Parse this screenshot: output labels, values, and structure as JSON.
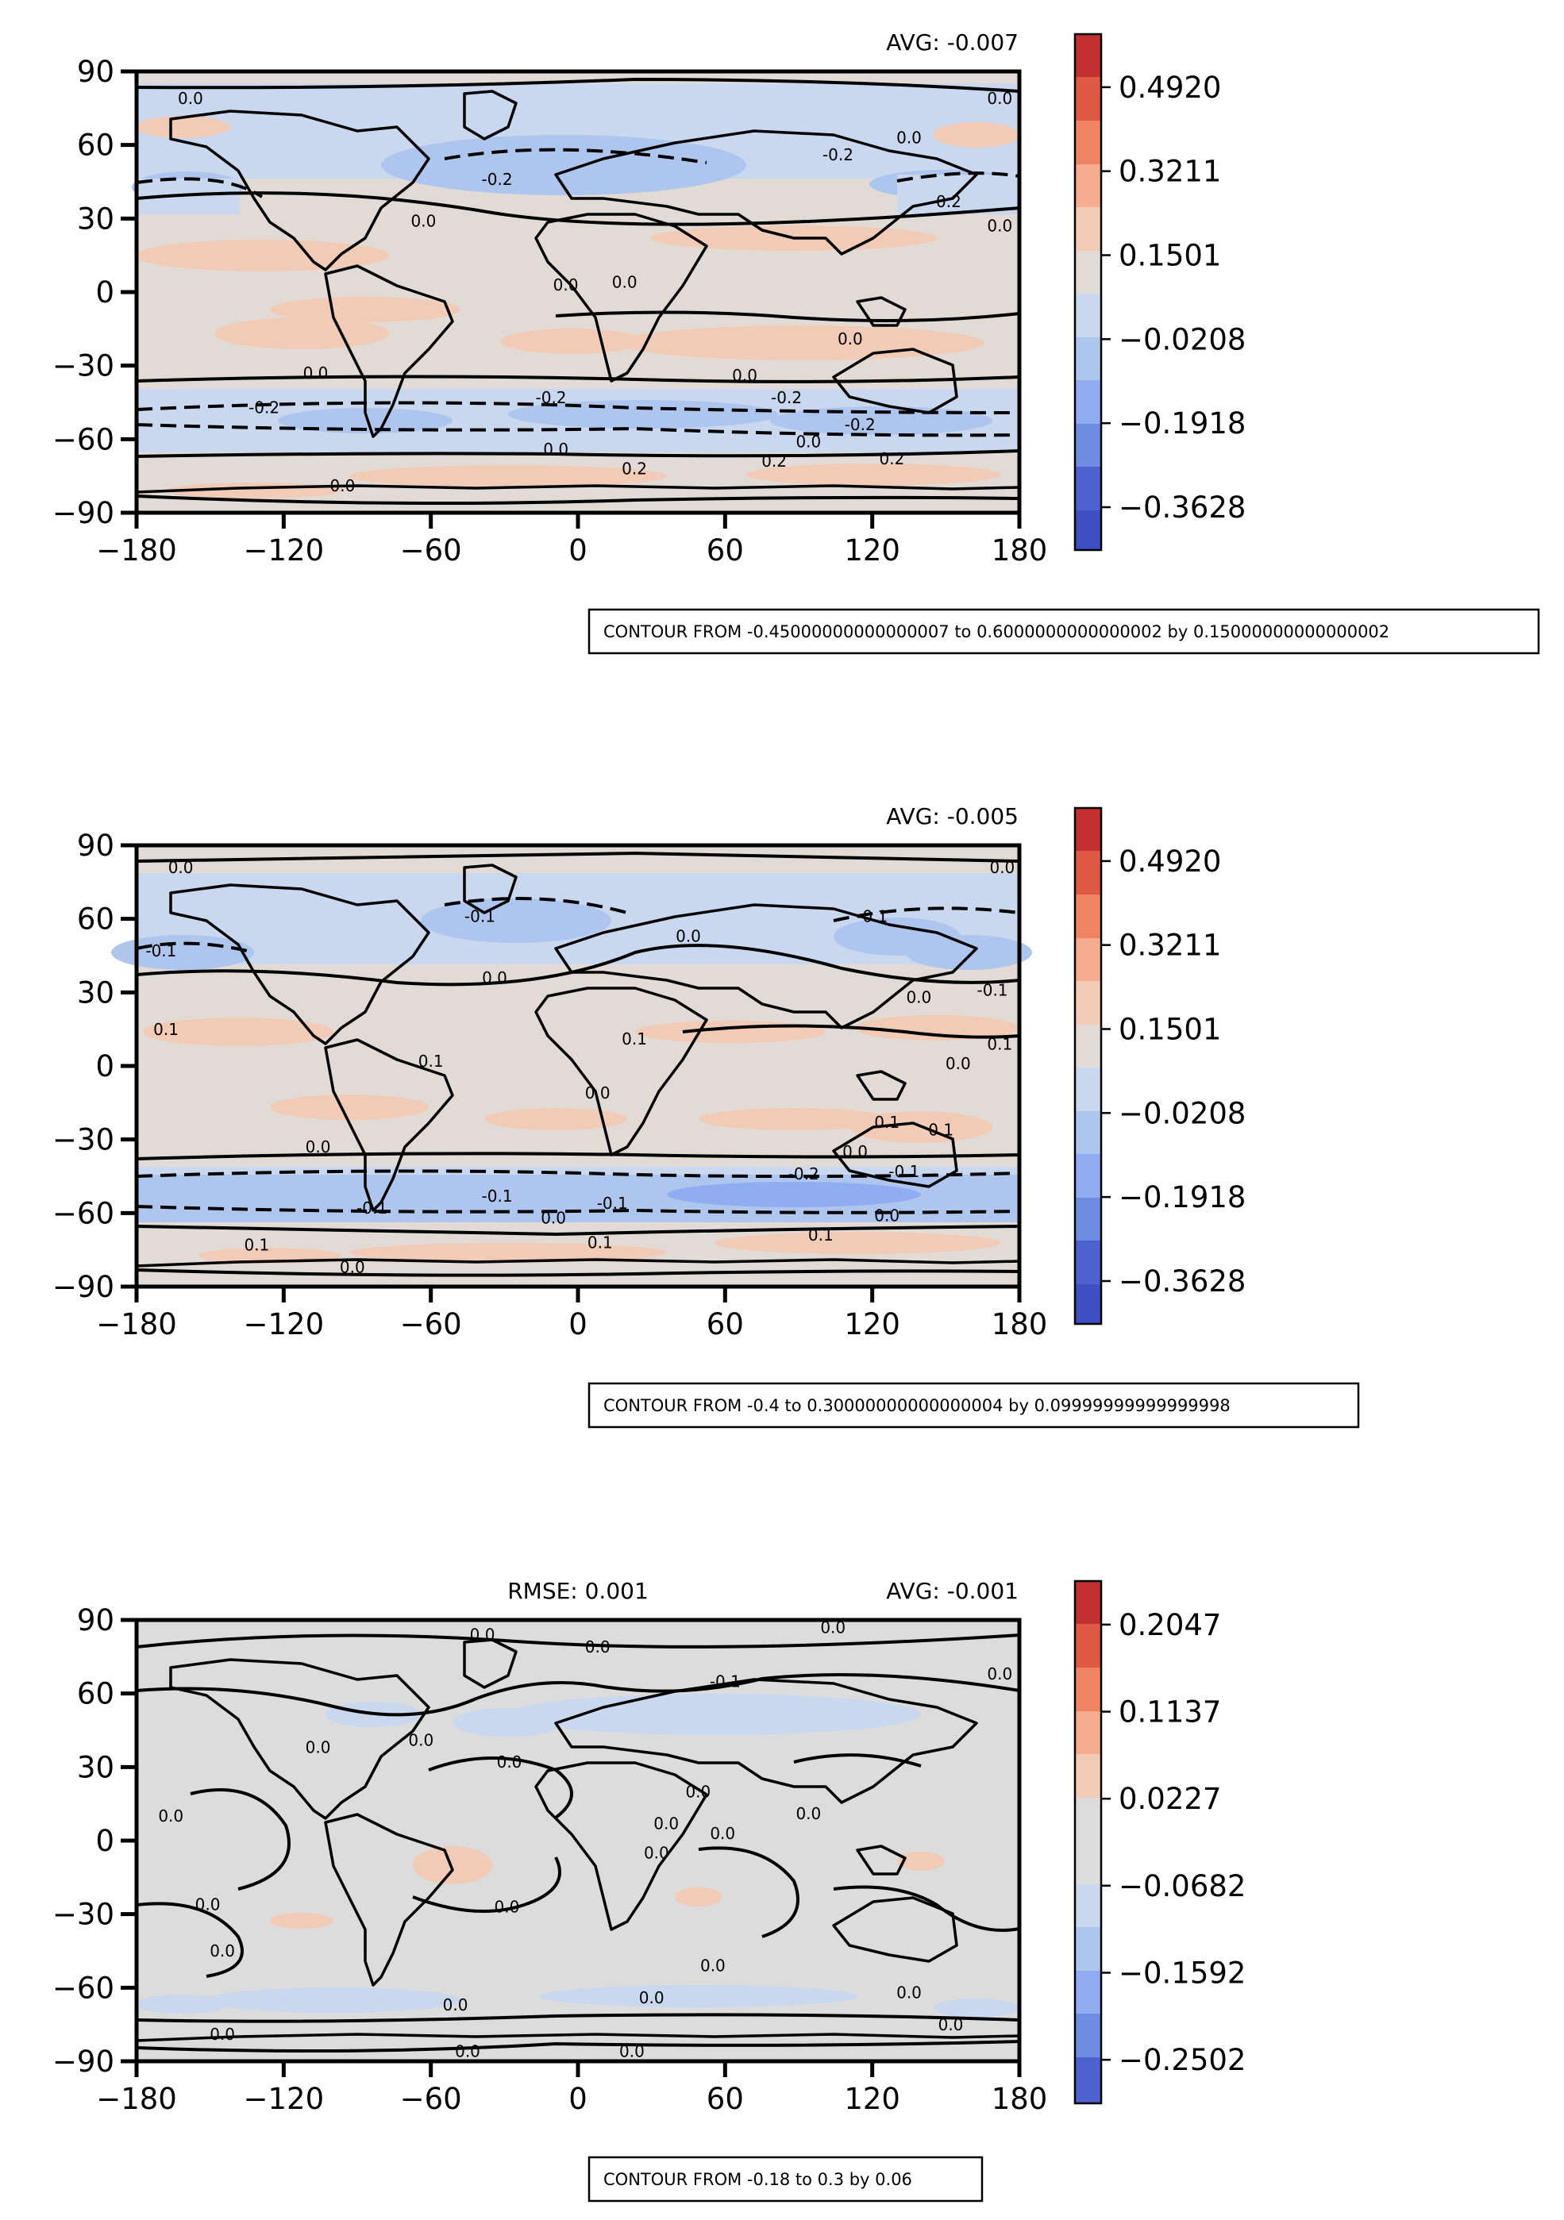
{
  "chart_data": [
    {
      "type": "heatmap",
      "title_left": "",
      "title_right": "AVG: -0.007",
      "xlim": [
        -180,
        180
      ],
      "ylim": [
        -90,
        90
      ],
      "xticks": [
        "−180",
        "−120",
        "−60",
        "0",
        "60",
        "120",
        "180"
      ],
      "yticks": [
        "90",
        "60",
        "30",
        "0",
        "−30",
        "−60",
        "−90"
      ],
      "colorbar": {
        "vmin": -0.45,
        "vmax": 0.6,
        "labels": [
          "0.4920",
          "0.3211",
          "0.1501",
          "−0.0208",
          "−0.1918",
          "−0.3628"
        ],
        "label_values": [
          0.492,
          0.3211,
          0.1501,
          -0.0208,
          -0.1918,
          -0.3628
        ]
      },
      "contour_levels": [
        -0.45,
        -0.3,
        -0.15,
        0.0,
        0.15,
        0.3,
        0.45,
        0.6
      ],
      "contour_note": "CONTOUR FROM -0.45000000000000007 to 0.6000000000000002 by 0.15000000000000002",
      "contour_labels": [
        {
          "text": "0.0",
          "lon": -158,
          "lat": 78
        },
        {
          "text": "-0.2",
          "lon": -33,
          "lat": 45
        },
        {
          "text": "0.0",
          "lon": -63,
          "lat": 28
        },
        {
          "text": "-0.2",
          "lon": 106,
          "lat": 55
        },
        {
          "text": "-0.2",
          "lon": 150,
          "lat": 36
        },
        {
          "text": "0.0",
          "lon": 172,
          "lat": 26
        },
        {
          "text": "0.0",
          "lon": 172,
          "lat": 78
        },
        {
          "text": "0.0",
          "lon": 135,
          "lat": 62
        },
        {
          "text": "0.0",
          "lon": -5,
          "lat": 2
        },
        {
          "text": "0.0",
          "lon": 19,
          "lat": 3
        },
        {
          "text": "0.0",
          "lon": 111,
          "lat": -20
        },
        {
          "text": "0.0",
          "lon": -107,
          "lat": -34
        },
        {
          "text": "0.0",
          "lon": 68,
          "lat": -35
        },
        {
          "text": "-0.2",
          "lon": -128,
          "lat": -48
        },
        {
          "text": "-0.2",
          "lon": -11,
          "lat": -44
        },
        {
          "text": "-0.2",
          "lon": 85,
          "lat": -44
        },
        {
          "text": "-0.2",
          "lon": 115,
          "lat": -55
        },
        {
          "text": "0.0",
          "lon": -9,
          "lat": -65
        },
        {
          "text": "0.0",
          "lon": 94,
          "lat": -62
        },
        {
          "text": "0.2",
          "lon": 23,
          "lat": -73
        },
        {
          "text": "0.2",
          "lon": 128,
          "lat": -69
        },
        {
          "text": "0.2",
          "lon": 80,
          "lat": -70
        },
        {
          "text": "0.0",
          "lon": -96,
          "lat": -80
        }
      ]
    },
    {
      "type": "heatmap",
      "title_left": "",
      "title_right": "AVG: -0.005",
      "xlim": [
        -180,
        180
      ],
      "ylim": [
        -90,
        90
      ],
      "xticks": [
        "−180",
        "−120",
        "−60",
        "0",
        "60",
        "120",
        "180"
      ],
      "yticks": [
        "90",
        "60",
        "30",
        "0",
        "−30",
        "−60",
        "−90"
      ],
      "colorbar": {
        "vmin": -0.45,
        "vmax": 0.6,
        "labels": [
          "0.4920",
          "0.3211",
          "0.1501",
          "−0.0208",
          "−0.1918",
          "−0.3628"
        ],
        "label_values": [
          0.492,
          0.3211,
          0.1501,
          -0.0208,
          -0.1918,
          -0.3628
        ]
      },
      "contour_levels": [
        -0.4,
        -0.3,
        -0.2,
        -0.1,
        0.0,
        0.1,
        0.2,
        0.3
      ],
      "contour_note": "CONTOUR FROM -0.4 to 0.30000000000000004 by 0.09999999999999998",
      "contour_labels": [
        {
          "text": "0.0",
          "lon": -162,
          "lat": 80
        },
        {
          "text": "-0.1",
          "lon": -170,
          "lat": 46
        },
        {
          "text": "-0.1",
          "lon": -40,
          "lat": 60
        },
        {
          "text": "0.0",
          "lon": -34,
          "lat": 35
        },
        {
          "text": "0.0",
          "lon": 45,
          "lat": 52
        },
        {
          "text": "-0.1",
          "lon": 120,
          "lat": 60
        },
        {
          "text": "0.0",
          "lon": 139,
          "lat": 27
        },
        {
          "text": "-0.1",
          "lon": 169,
          "lat": 30
        },
        {
          "text": "0.0",
          "lon": 173,
          "lat": 80
        },
        {
          "text": "0.1",
          "lon": -168,
          "lat": 14
        },
        {
          "text": "0.1",
          "lon": -60,
          "lat": 1
        },
        {
          "text": "0.1",
          "lon": 23,
          "lat": 10
        },
        {
          "text": "0.1",
          "lon": 172,
          "lat": 8
        },
        {
          "text": "0.0",
          "lon": 155,
          "lat": 0
        },
        {
          "text": "0.0",
          "lon": 8,
          "lat": -12
        },
        {
          "text": "0.1",
          "lon": 126,
          "lat": -24
        },
        {
          "text": "0.1",
          "lon": 148,
          "lat": -27
        },
        {
          "text": "0.0",
          "lon": -106,
          "lat": -34
        },
        {
          "text": "0.0",
          "lon": 113,
          "lat": -36
        },
        {
          "text": "-0.2",
          "lon": 92,
          "lat": -45
        },
        {
          "text": "-0.1",
          "lon": 133,
          "lat": -44
        },
        {
          "text": "-0.1",
          "lon": -84,
          "lat": -59
        },
        {
          "text": "-0.1",
          "lon": -33,
          "lat": -54
        },
        {
          "text": "-0.1",
          "lon": 14,
          "lat": -57
        },
        {
          "text": "0.0",
          "lon": -10,
          "lat": -63
        },
        {
          "text": "0.0",
          "lon": 126,
          "lat": -62
        },
        {
          "text": "0.1",
          "lon": 9,
          "lat": -73
        },
        {
          "text": "0.1",
          "lon": 99,
          "lat": -70
        },
        {
          "text": "0.1",
          "lon": -131,
          "lat": -74
        },
        {
          "text": "0.0",
          "lon": -92,
          "lat": -83
        }
      ]
    },
    {
      "type": "heatmap",
      "title_left": "RMSE: 0.001",
      "title_right": "AVG: -0.001",
      "xlim": [
        -180,
        180
      ],
      "ylim": [
        -90,
        90
      ],
      "xticks": [
        "−180",
        "−120",
        "−60",
        "0",
        "60",
        "120",
        "180"
      ],
      "yticks": [
        "90",
        "60",
        "30",
        "0",
        "−30",
        "−60",
        "−90"
      ],
      "colorbar": {
        "vmin": -0.2957,
        "vmax": 0.2502,
        "labels": [
          "0.2047",
          "0.1137",
          "0.0227",
          "−0.0682",
          "−0.1592",
          "−0.2502"
        ],
        "label_values": [
          0.2047,
          0.1137,
          0.0227,
          -0.0682,
          -0.1592,
          -0.2502
        ]
      },
      "contour_levels": [
        -0.18,
        -0.12,
        -0.06,
        0.0,
        0.06,
        0.12,
        0.18,
        0.24,
        0.3
      ],
      "contour_note": "CONTOUR FROM -0.18 to 0.3 by 0.06",
      "contour_labels": [
        {
          "text": "0.0",
          "lon": -39,
          "lat": 83
        },
        {
          "text": "0.0",
          "lon": 8,
          "lat": 78
        },
        {
          "text": "0.0",
          "lon": 104,
          "lat": 86
        },
        {
          "text": "0.0",
          "lon": 172,
          "lat": 67
        },
        {
          "text": "-0.1",
          "lon": 60,
          "lat": 64
        },
        {
          "text": "0.0",
          "lon": -64,
          "lat": 40
        },
        {
          "text": "0.0",
          "lon": -106,
          "lat": 37
        },
        {
          "text": "0.0",
          "lon": -28,
          "lat": 31
        },
        {
          "text": "0.0",
          "lon": 49,
          "lat": 19
        },
        {
          "text": "0.0",
          "lon": 94,
          "lat": 10
        },
        {
          "text": "0.0",
          "lon": 59,
          "lat": 2
        },
        {
          "text": "0.0",
          "lon": 36,
          "lat": 6
        },
        {
          "text": "0.0",
          "lon": -166,
          "lat": 9
        },
        {
          "text": "0.0",
          "lon": 32,
          "lat": -6
        },
        {
          "text": "0.0",
          "lon": -151,
          "lat": -27
        },
        {
          "text": "0.0",
          "lon": -29,
          "lat": -28
        },
        {
          "text": "0.0",
          "lon": -145,
          "lat": -46
        },
        {
          "text": "0.0",
          "lon": 55,
          "lat": -52
        },
        {
          "text": "0.0",
          "lon": -50,
          "lat": -68
        },
        {
          "text": "0.0",
          "lon": 30,
          "lat": -65
        },
        {
          "text": "0.0",
          "lon": 135,
          "lat": -63
        },
        {
          "text": "0.0",
          "lon": 152,
          "lat": -76
        },
        {
          "text": "0.0",
          "lon": -145,
          "lat": -80
        },
        {
          "text": "0.0",
          "lon": -45,
          "lat": -87
        },
        {
          "text": "0.0",
          "lon": 22,
          "lat": -87
        }
      ]
    }
  ]
}
